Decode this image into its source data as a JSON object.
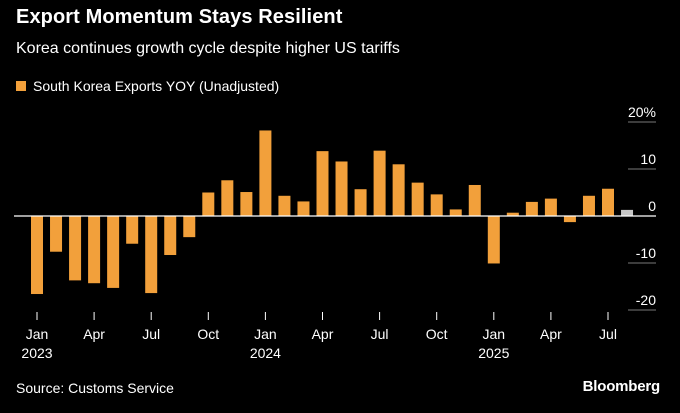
{
  "chart_data": {
    "type": "bar",
    "title": "Export Momentum Stays Resilient",
    "subtitle": "Korea continues growth cycle despite higher US tariffs",
    "legend": [
      {
        "name": "South Korea Exports YOY (Unadjusted)",
        "color": "#f2a03b"
      }
    ],
    "source": "Source: Customs Service",
    "brand": "Bloomberg",
    "bar_color": "#f2a03b",
    "highlight_color": "#c8c8c8",
    "ylim": [
      -20,
      20
    ],
    "y_ticks": [
      {
        "value": 20,
        "label": "20%"
      },
      {
        "value": 10,
        "label": "10"
      },
      {
        "value": 0,
        "label": "0"
      },
      {
        "value": -10,
        "label": "-10"
      },
      {
        "value": -20,
        "label": "-20"
      }
    ],
    "x": [
      "2023-01",
      "2023-02",
      "2023-03",
      "2023-04",
      "2023-05",
      "2023-06",
      "2023-07",
      "2023-08",
      "2023-09",
      "2023-10",
      "2023-11",
      "2023-12",
      "2024-01",
      "2024-02",
      "2024-03",
      "2024-04",
      "2024-05",
      "2024-06",
      "2024-07",
      "2024-08",
      "2024-09",
      "2024-10",
      "2024-11",
      "2024-12",
      "2025-01",
      "2025-02",
      "2025-03",
      "2025-04",
      "2025-05",
      "2025-06",
      "2025-07",
      "2025-08"
    ],
    "values": [
      -16.6,
      -7.6,
      -13.7,
      -14.3,
      -15.3,
      -5.9,
      -16.4,
      -8.3,
      -4.5,
      5.0,
      7.6,
      5.1,
      18.2,
      4.3,
      3.1,
      13.8,
      11.6,
      5.7,
      13.9,
      11.0,
      7.1,
      4.6,
      1.4,
      6.6,
      -10.1,
      0.7,
      3.0,
      3.7,
      -1.3,
      4.3,
      5.8,
      1.3
    ],
    "highlight_index": 31,
    "x_ticks": [
      {
        "index": 0,
        "label": "Jan",
        "sublabel": "2023"
      },
      {
        "index": 3,
        "label": "Apr",
        "sublabel": ""
      },
      {
        "index": 6,
        "label": "Jul",
        "sublabel": ""
      },
      {
        "index": 9,
        "label": "Oct",
        "sublabel": ""
      },
      {
        "index": 12,
        "label": "Jan",
        "sublabel": "2024"
      },
      {
        "index": 15,
        "label": "Apr",
        "sublabel": ""
      },
      {
        "index": 18,
        "label": "Jul",
        "sublabel": ""
      },
      {
        "index": 21,
        "label": "Oct",
        "sublabel": ""
      },
      {
        "index": 24,
        "label": "Jan",
        "sublabel": "2025"
      },
      {
        "index": 27,
        "label": "Apr",
        "sublabel": ""
      },
      {
        "index": 30,
        "label": "Jul",
        "sublabel": ""
      }
    ]
  }
}
